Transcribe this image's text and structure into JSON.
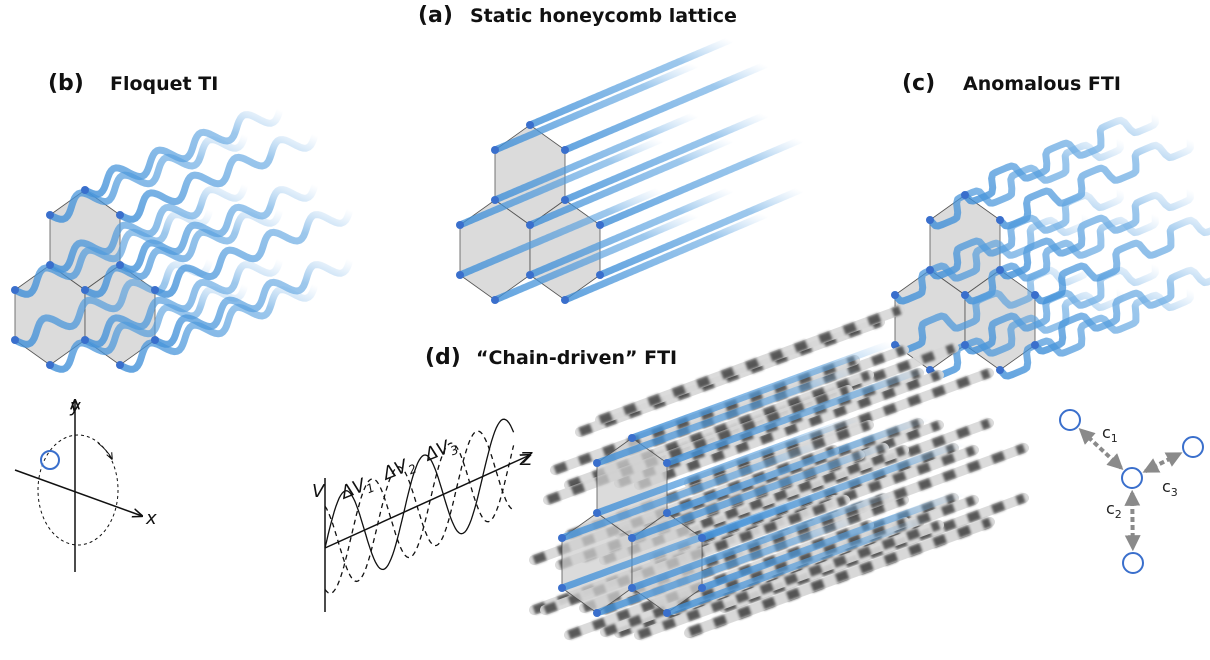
{
  "panels": {
    "a": {
      "label": "(a)",
      "title": "Static honeycomb lattice"
    },
    "b": {
      "label": "(b)",
      "title": "Floquet TI"
    },
    "c": {
      "label": "(c)",
      "title": "Anomalous FTI"
    },
    "d": {
      "label": "(d)",
      "title": "“Chain-driven” FTI"
    }
  },
  "orbit_axes": {
    "x": "x",
    "y": "y"
  },
  "potential_plot": {
    "v_axis": "V",
    "z_axis": "Z",
    "curves": [
      {
        "symbol": "ΔV",
        "subscript": "1"
      },
      {
        "symbol": "ΔV",
        "subscript": "2"
      },
      {
        "symbol": "ΔV",
        "subscript": "3"
      }
    ]
  },
  "couplings": [
    {
      "symbol": "c",
      "subscript": "1"
    },
    {
      "symbol": "c",
      "subscript": "2"
    },
    {
      "symbol": "c",
      "subscript": "3"
    }
  ]
}
